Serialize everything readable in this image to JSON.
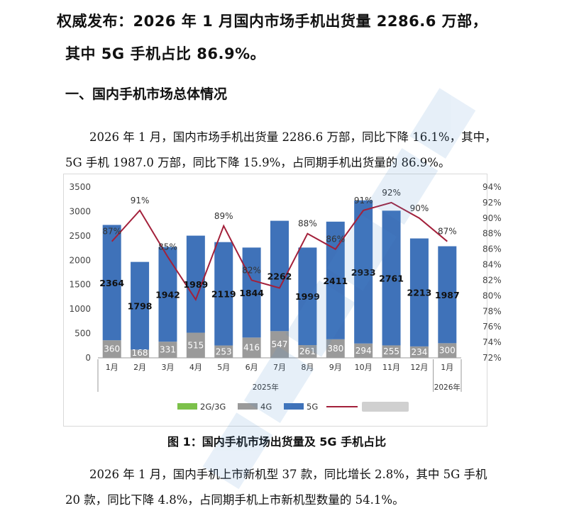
{
  "headline": {
    "line1": "权威发布：2026 年 1 月国内市场手机出货量 2286.6 万部，",
    "line2": "其中 5G 手机占比 86.9%。"
  },
  "section_title": "一、国内手机市场总体情况",
  "paragraph1": "2026 年 1 月，国内市场手机出货量 2286.6 万部，同比下降 16.1%，其中，5G 手机 1987.0 万部，同比下降 15.9%，占同期手机出货量的 86.9%。",
  "paragraph2": "2026 年 1 月，国内手机上市新机型 37 款，同比增长 2.8%，其中 5G 手机 20 款，同比下降 4.8%，占同期手机上市新机型数量的 54.1%。",
  "caption": "图 1：国内手机市场出货量及 5G 手机占比",
  "chart_data": {
    "type": "bar",
    "categories": [
      "1月",
      "2月",
      "3月",
      "4月",
      "5月",
      "6月",
      "7月",
      "8月",
      "9月",
      "10月",
      "11月",
      "12月",
      "1月"
    ],
    "year_groups": [
      {
        "label": "2025年",
        "span": 12
      },
      {
        "label": "2026年",
        "span": 1
      }
    ],
    "series": [
      {
        "name": "2G/3G",
        "kind": "stacked-bar",
        "color": "#7cc14a",
        "values": [
          0,
          0,
          0,
          0,
          0,
          0,
          0,
          0,
          0,
          0,
          0,
          0,
          0
        ]
      },
      {
        "name": "4G",
        "kind": "stacked-bar",
        "color": "#9a9a9a",
        "values": [
          360,
          168,
          331,
          515,
          253,
          416,
          547,
          261,
          380,
          294,
          255,
          234,
          300
        ]
      },
      {
        "name": "5G",
        "kind": "stacked-bar",
        "color": "#3f72b9",
        "values": [
          2364,
          1798,
          1942,
          1989,
          2119,
          1844,
          2262,
          1999,
          2411,
          2933,
          2761,
          2213,
          1987
        ]
      },
      {
        "name": "",
        "kind": "line",
        "axis": "right",
        "color": "#a3203a",
        "values": [
          87,
          91,
          85,
          79.5,
          89,
          82,
          81,
          88,
          86,
          91,
          92,
          90,
          87
        ]
      }
    ],
    "bar_labels_4g": [
      "360",
      "168",
      "331",
      "515",
      "253",
      "416",
      "547",
      "261",
      "380",
      "294",
      "255",
      "234",
      "300"
    ],
    "bar_labels_5g": [
      "2364",
      "1798",
      "1942",
      "1989",
      "2119",
      "1844",
      "2262",
      "1999",
      "2411",
      "2933",
      "2761",
      "2213",
      "1987"
    ],
    "point_labels": [
      "87%",
      "91%",
      "85%",
      "",
      "89%",
      "82%",
      "",
      "88%",
      "86%",
      "91%",
      "92%",
      "90%",
      "87%"
    ],
    "y_left": {
      "lim": [
        0,
        3500
      ],
      "ticks": [
        "0",
        "500",
        "1000",
        "1500",
        "2000",
        "2500",
        "3000",
        "3500"
      ]
    },
    "y_right": {
      "lim": [
        72,
        94
      ],
      "ticks": [
        "72%",
        "74%",
        "76%",
        "78%",
        "80%",
        "82%",
        "84%",
        "86%",
        "88%",
        "90%",
        "92%",
        "94%"
      ]
    },
    "legend": [
      "2G/3G",
      "4G",
      "5G",
      ""
    ],
    "legend_position": "bottom",
    "grid": false
  },
  "colors": {
    "bar_5g": "#3f72b9",
    "bar_4g": "#9a9a9a",
    "bar_2g3g": "#7cc14a",
    "line": "#a3203a"
  }
}
